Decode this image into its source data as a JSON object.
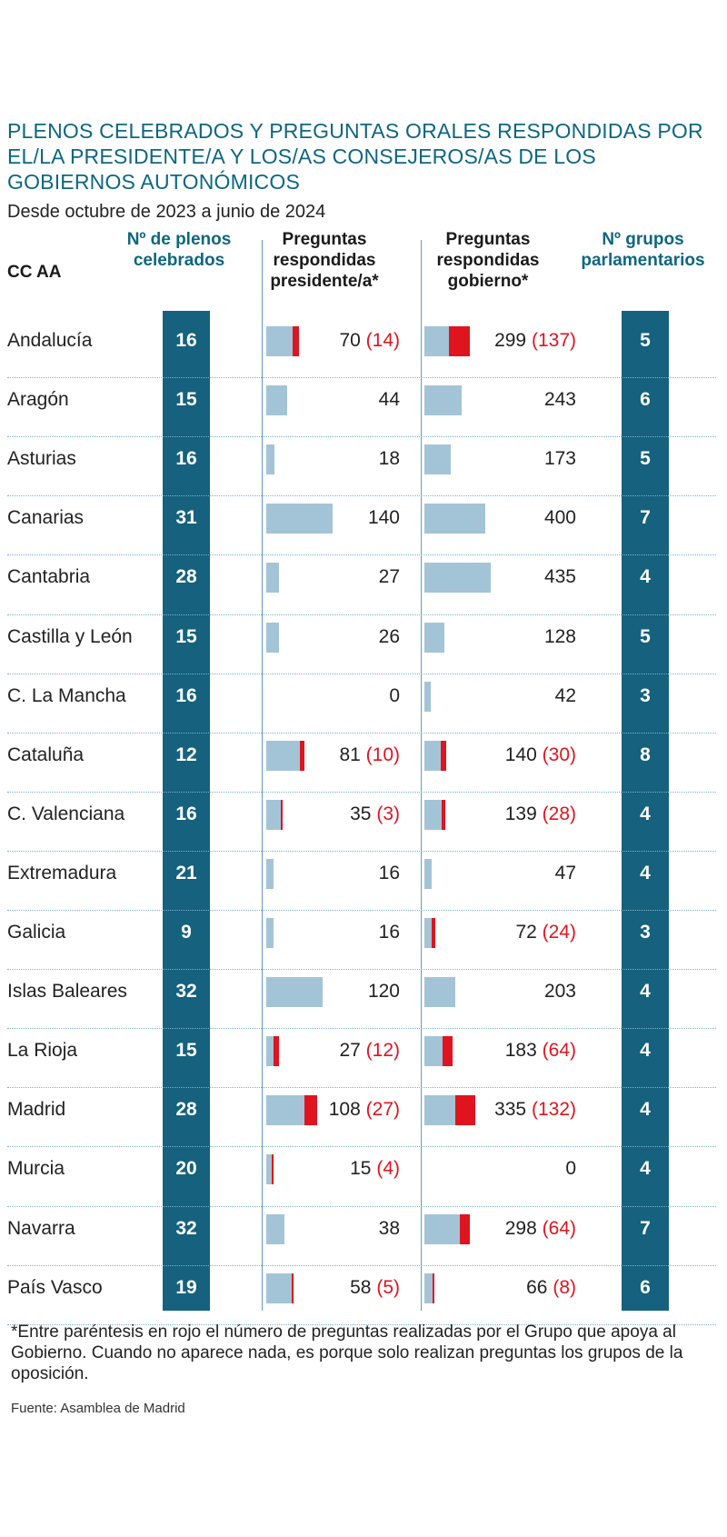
{
  "title": "PLENOS CELEBRADOS Y PREGUNTAS ORALES RESPONDIDAS POR EL/LA PRESIDENTE/A Y LOS/AS CONSEJEROS/AS DE LOS GOBIERNOS AUTONÓMICOS",
  "subtitle": "Desde octubre de 2023 a junio de 2024",
  "headers": {
    "region": "CC AA",
    "plenos": "Nº de plenos celebrados",
    "presidente": "Preguntas respondidas presidente/a*",
    "gobierno": "Preguntas respondidas gobierno*",
    "grupos": "Nº grupos parlamentarios"
  },
  "footnote": "*Entre paréntesis en rojo el número de preguntas realizadas por el Grupo que apoya al Gobierno. Cuando no aparece nada, es porque solo realizan preguntas los grupos de la oposición.",
  "source": "Fuente: Asamblea de Madrid",
  "colors": {
    "band": "#15617e",
    "bar": "#a3c4d6",
    "government_group": "#e0141e",
    "title": "#0e6680"
  },
  "chart_data": {
    "type": "table",
    "columns": [
      "CC AA",
      "Nº de plenos celebrados",
      "Preguntas respondidas presidente/a*",
      "Preguntas respondidas gobierno*",
      "Nº grupos parlamentarios"
    ],
    "rows": [
      {
        "region": "Andalucía",
        "plenos": 16,
        "pres": 70,
        "pres_gov": 14,
        "gob": 299,
        "gob_gov": 137,
        "grupos": 5
      },
      {
        "region": "Aragón",
        "plenos": 15,
        "pres": 44,
        "pres_gov": null,
        "gob": 243,
        "gob_gov": null,
        "grupos": 6
      },
      {
        "region": "Asturias",
        "plenos": 16,
        "pres": 18,
        "pres_gov": null,
        "gob": 173,
        "gob_gov": null,
        "grupos": 5
      },
      {
        "region": "Canarias",
        "plenos": 31,
        "pres": 140,
        "pres_gov": null,
        "gob": 400,
        "gob_gov": null,
        "grupos": 7
      },
      {
        "region": "Cantabria",
        "plenos": 28,
        "pres": 27,
        "pres_gov": null,
        "gob": 435,
        "gob_gov": null,
        "grupos": 4
      },
      {
        "region": "Castilla y León",
        "plenos": 15,
        "pres": 26,
        "pres_gov": null,
        "gob": 128,
        "gob_gov": null,
        "grupos": 5
      },
      {
        "region": "C. La Mancha",
        "plenos": 16,
        "pres": 0,
        "pres_gov": null,
        "gob": 42,
        "gob_gov": null,
        "grupos": 3
      },
      {
        "region": "Cataluña",
        "plenos": 12,
        "pres": 81,
        "pres_gov": 10,
        "gob": 140,
        "gob_gov": 30,
        "grupos": 8
      },
      {
        "region": "C. Valenciana",
        "plenos": 16,
        "pres": 35,
        "pres_gov": 3,
        "gob": 139,
        "gob_gov": 28,
        "grupos": 4
      },
      {
        "region": "Extremadura",
        "plenos": 21,
        "pres": 16,
        "pres_gov": null,
        "gob": 47,
        "gob_gov": null,
        "grupos": 4
      },
      {
        "region": "Galicia",
        "plenos": 9,
        "pres": 16,
        "pres_gov": null,
        "gob": 72,
        "gob_gov": 24,
        "grupos": 3
      },
      {
        "region": "Islas Baleares",
        "plenos": 32,
        "pres": 120,
        "pres_gov": null,
        "gob": 203,
        "gob_gov": null,
        "grupos": 4
      },
      {
        "region": "La Rioja",
        "plenos": 15,
        "pres": 27,
        "pres_gov": 12,
        "gob": 183,
        "gob_gov": 64,
        "grupos": 4
      },
      {
        "region": "Madrid",
        "plenos": 28,
        "pres": 108,
        "pres_gov": 27,
        "gob": 335,
        "gob_gov": 132,
        "grupos": 4
      },
      {
        "region": "Murcia",
        "plenos": 20,
        "pres": 15,
        "pres_gov": 4,
        "gob": 0,
        "gob_gov": null,
        "grupos": 4
      },
      {
        "region": "Navarra",
        "plenos": 32,
        "pres": 38,
        "pres_gov": null,
        "gob": 298,
        "gob_gov": 64,
        "grupos": 7
      },
      {
        "region": "País Vasco",
        "plenos": 19,
        "pres": 58,
        "pres_gov": 5,
        "gob": 66,
        "gob_gov": 8,
        "grupos": 6
      }
    ]
  }
}
